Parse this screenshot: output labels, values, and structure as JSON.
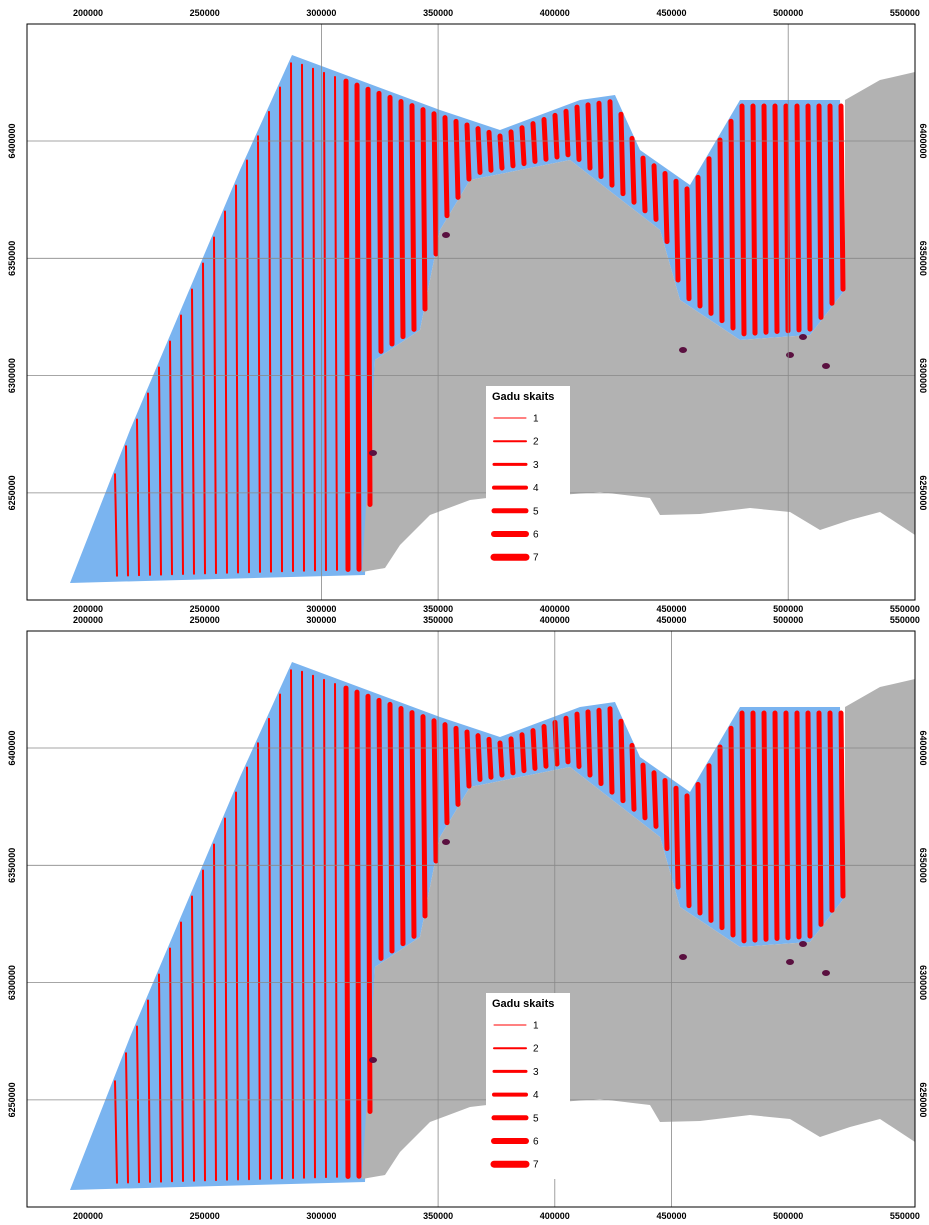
{
  "panels": [
    {
      "xticks": [
        200000,
        250000,
        300000,
        350000,
        400000,
        450000,
        500000,
        550000
      ],
      "yticks": [
        6400000,
        6350000,
        6300000,
        6250000
      ],
      "legend": {
        "title": "Gadu skaits",
        "items": [
          1,
          2,
          3,
          4,
          5,
          6,
          7
        ]
      }
    },
    {
      "xticks": [
        200000,
        250000,
        300000,
        350000,
        400000,
        450000,
        500000,
        550000
      ],
      "yticks": [
        6400000,
        6350000,
        6300000,
        6250000
      ],
      "legend": {
        "title": "Gadu skaits",
        "items": [
          1,
          2,
          3,
          4,
          5,
          6,
          7
        ]
      }
    }
  ]
}
